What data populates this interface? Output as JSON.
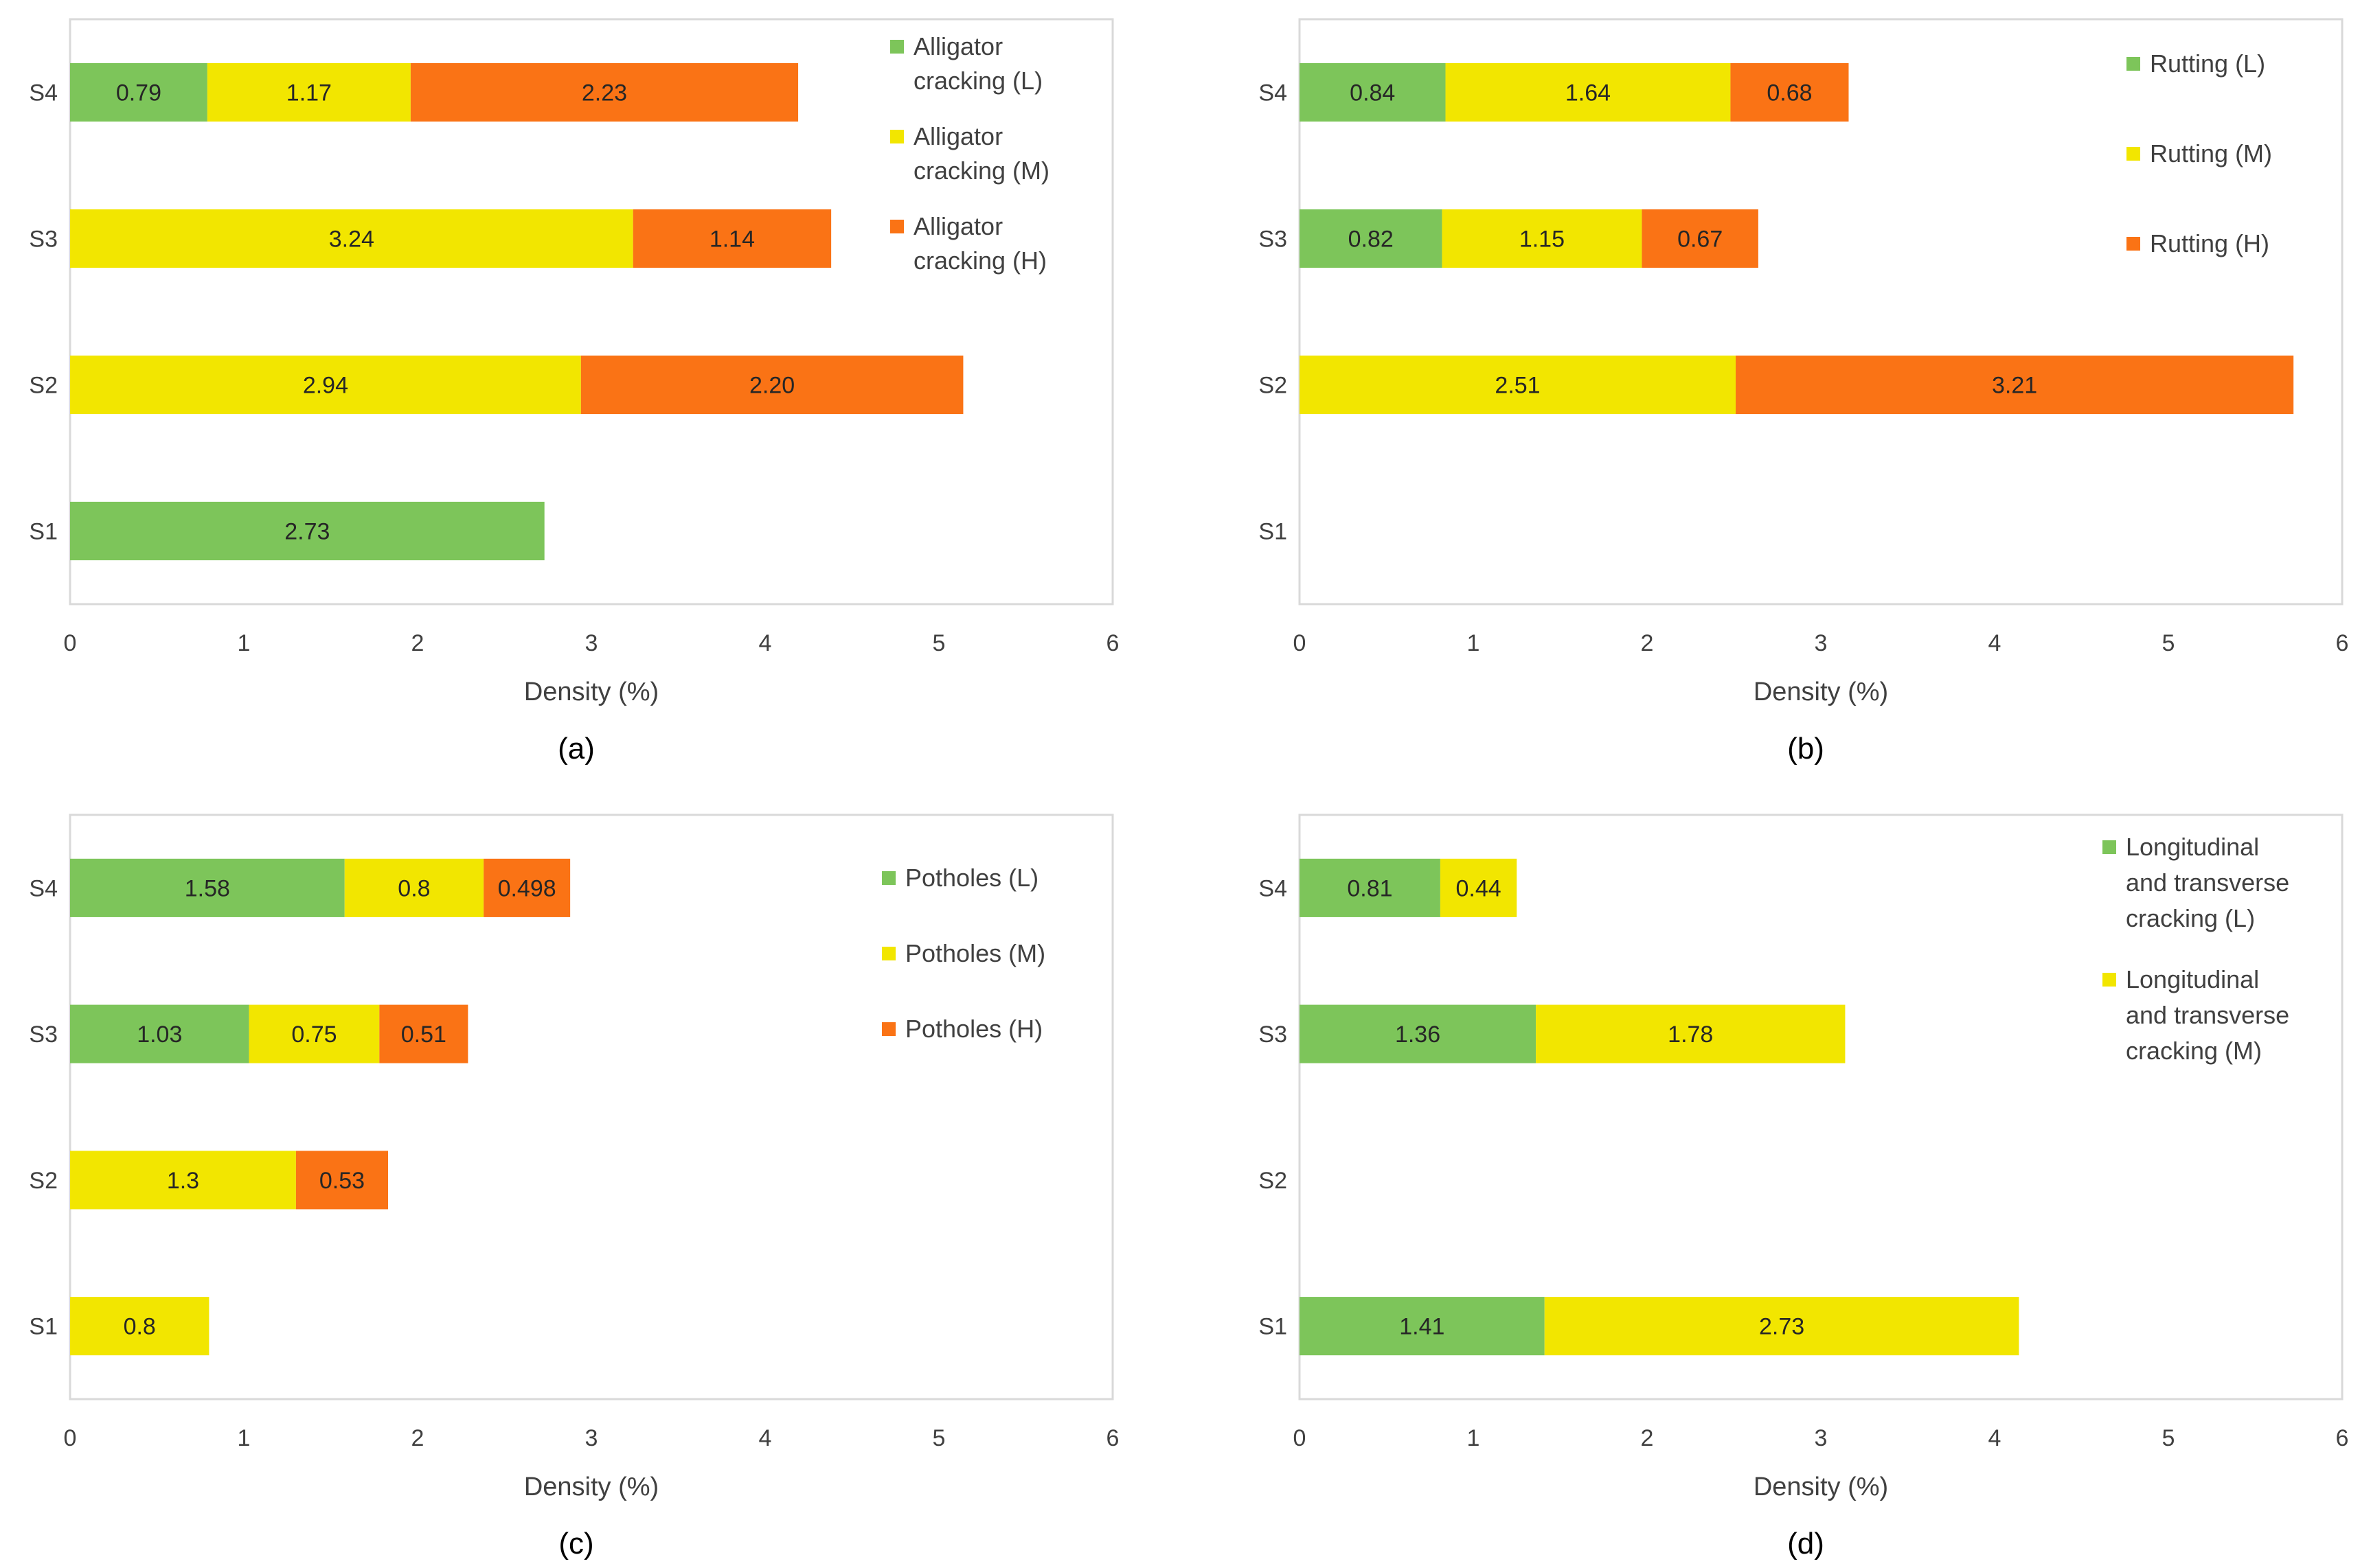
{
  "colors": {
    "L": "#7DC55A",
    "M": "#F2E600",
    "H": "#FA7315"
  },
  "chart_data": [
    {
      "type": "bar",
      "orientation": "horizontal",
      "stacked": true,
      "panel_label": "(a)",
      "xlabel": "Density (%)",
      "xlim": [
        0,
        6
      ],
      "xticks": [
        "0",
        "1",
        "2",
        "3",
        "4",
        "5",
        "6"
      ],
      "categories": [
        "S4",
        "S3",
        "S2",
        "S1"
      ],
      "legend_placement": "top-right",
      "series": [
        {
          "name": "Alligator cracking (L)",
          "legend_lines": [
            "Alligator",
            "cracking (L)"
          ],
          "level": "L",
          "values": [
            0.79,
            null,
            null,
            2.73
          ],
          "labels": [
            "0.79",
            "",
            "",
            "2.73"
          ]
        },
        {
          "name": "Alligator cracking (M)",
          "legend_lines": [
            "Alligator",
            "cracking (M)"
          ],
          "level": "M",
          "values": [
            1.17,
            3.24,
            2.94,
            null
          ],
          "labels": [
            "1.17",
            "3.24",
            "2.94",
            ""
          ]
        },
        {
          "name": "Alligator cracking (H)",
          "legend_lines": [
            "Alligator",
            "cracking (H)"
          ],
          "level": "H",
          "values": [
            2.23,
            1.14,
            2.2,
            null
          ],
          "labels": [
            "2.23",
            "1.14",
            "2.20",
            ""
          ]
        }
      ]
    },
    {
      "type": "bar",
      "orientation": "horizontal",
      "stacked": true,
      "panel_label": "(b)",
      "xlabel": "Density (%)",
      "xlim": [
        0,
        6
      ],
      "xticks": [
        "0",
        "1",
        "2",
        "3",
        "4",
        "5",
        "6"
      ],
      "categories": [
        "S4",
        "S3",
        "S2",
        "S1"
      ],
      "legend_placement": "top-right",
      "series": [
        {
          "name": "Rutting (L)",
          "legend_lines": [
            "Rutting (L)"
          ],
          "level": "L",
          "values": [
            0.84,
            0.82,
            null,
            null
          ],
          "labels": [
            "0.84",
            "0.82",
            "",
            ""
          ]
        },
        {
          "name": "Rutting (M)",
          "legend_lines": [
            "Rutting (M)"
          ],
          "level": "M",
          "values": [
            1.64,
            1.15,
            2.51,
            null
          ],
          "labels": [
            "1.64",
            "1.15",
            "2.51",
            ""
          ]
        },
        {
          "name": "Rutting (H)",
          "legend_lines": [
            "Rutting (H)"
          ],
          "level": "H",
          "values": [
            0.68,
            0.67,
            3.21,
            null
          ],
          "labels": [
            "0.68",
            "0.67",
            "3.21",
            ""
          ]
        }
      ]
    },
    {
      "type": "bar",
      "orientation": "horizontal",
      "stacked": true,
      "panel_label": "(c)",
      "xlabel": "Density (%)",
      "xlim": [
        0,
        6
      ],
      "xticks": [
        "0",
        "1",
        "2",
        "3",
        "4",
        "5",
        "6"
      ],
      "categories": [
        "S4",
        "S3",
        "S2",
        "S1"
      ],
      "legend_placement": "top-right",
      "series": [
        {
          "name": "Potholes (L)",
          "legend_lines": [
            "Potholes (L)"
          ],
          "level": "L",
          "values": [
            1.58,
            1.03,
            null,
            null
          ],
          "labels": [
            "1.58",
            "1.03",
            "",
            ""
          ]
        },
        {
          "name": "Potholes (M)",
          "legend_lines": [
            "Potholes (M)"
          ],
          "level": "M",
          "values": [
            0.8,
            0.75,
            1.3,
            0.8
          ],
          "labels": [
            "0.8",
            "0.75",
            "1.3",
            "0.8"
          ]
        },
        {
          "name": "Potholes (H)",
          "legend_lines": [
            "Potholes (H)"
          ],
          "level": "H",
          "values": [
            0.498,
            0.51,
            0.53,
            null
          ],
          "labels": [
            "0.498",
            "0.51",
            "0.53",
            ""
          ]
        }
      ]
    },
    {
      "type": "bar",
      "orientation": "horizontal",
      "stacked": true,
      "panel_label": "(d)",
      "xlabel": "Density (%)",
      "xlim": [
        0,
        6
      ],
      "xticks": [
        "0",
        "1",
        "2",
        "3",
        "4",
        "5",
        "6"
      ],
      "categories": [
        "S4",
        "S3",
        "S2",
        "S1"
      ],
      "legend_placement": "top-right",
      "series": [
        {
          "name": "Longitudinal and transverse cracking (L)",
          "legend_lines": [
            "Longitudinal",
            "and transverse",
            "cracking (L)"
          ],
          "level": "L",
          "values": [
            0.81,
            1.36,
            null,
            1.41
          ],
          "labels": [
            "0.81",
            "1.36",
            "",
            "1.41"
          ]
        },
        {
          "name": "Longitudinal and transverse cracking (M)",
          "legend_lines": [
            "Longitudinal",
            "and transverse",
            "cracking (M)"
          ],
          "level": "M",
          "values": [
            0.44,
            1.78,
            null,
            2.73
          ],
          "labels": [
            "0.44",
            "1.78",
            "",
            "2.73"
          ]
        }
      ]
    }
  ]
}
